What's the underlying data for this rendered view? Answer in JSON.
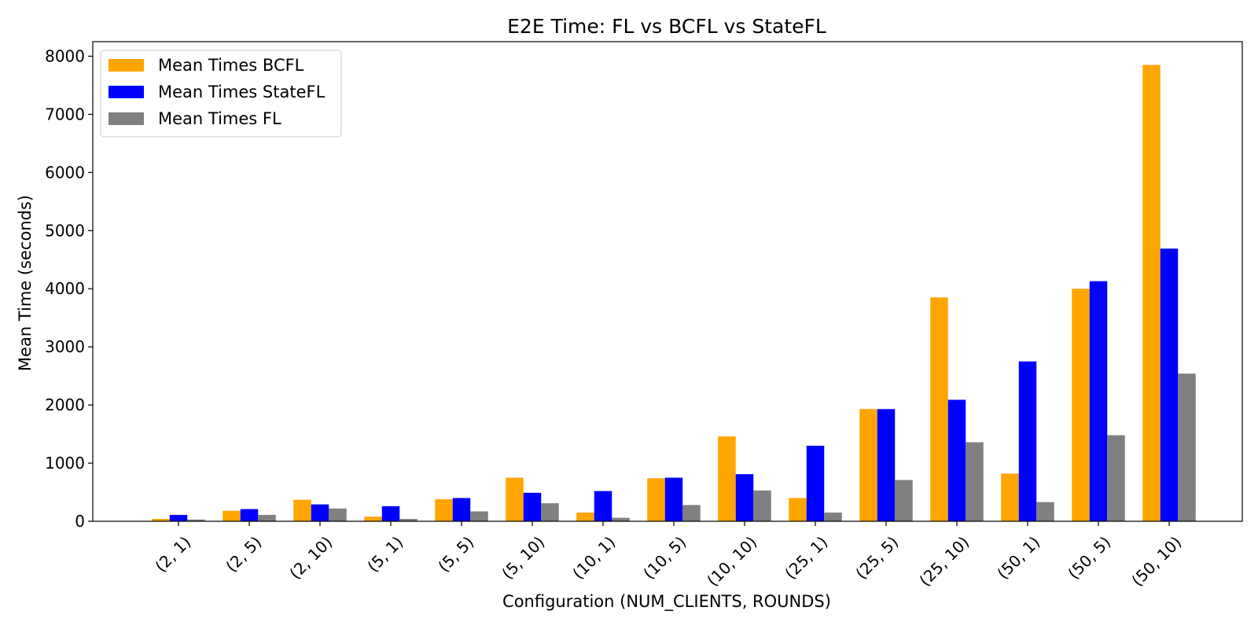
{
  "chart_data": {
    "type": "bar",
    "title": "E2E Time: FL vs BCFL vs StateFL",
    "xlabel": "Configuration (NUM_CLIENTS, ROUNDS)",
    "ylabel": "Mean Time (seconds)",
    "ylim": [
      0,
      8250
    ],
    "yticks": [
      0,
      1000,
      2000,
      3000,
      4000,
      5000,
      6000,
      7000,
      8000
    ],
    "yticklabels": [
      "0",
      "1000",
      "2000",
      "3000",
      "4000",
      "5000",
      "6000",
      "7000",
      "8000"
    ],
    "grid": false,
    "legend_position": "top-left",
    "categories": [
      "(2, 1)",
      "(2, 5)",
      "(2, 10)",
      "(5, 1)",
      "(5, 5)",
      "(5, 10)",
      "(10, 1)",
      "(10, 5)",
      "(10, 10)",
      "(25, 1)",
      "(25, 5)",
      "(25, 10)",
      "(50, 1)",
      "(50, 5)",
      "(50, 10)"
    ],
    "series": [
      {
        "name": "Mean Times BCFL",
        "color": "#ffa500",
        "values": [
          40,
          180,
          370,
          80,
          380,
          750,
          150,
          740,
          1460,
          400,
          1930,
          3850,
          820,
          4000,
          7850
        ]
      },
      {
        "name": "Mean Times StateFL",
        "color": "#0000ff",
        "values": [
          110,
          210,
          290,
          260,
          400,
          490,
          520,
          750,
          810,
          1300,
          1930,
          2090,
          2750,
          4130,
          4690
        ]
      },
      {
        "name": "Mean Times FL",
        "color": "#808080",
        "values": [
          30,
          110,
          220,
          40,
          170,
          310,
          60,
          280,
          530,
          150,
          710,
          1360,
          330,
          1480,
          2540
        ]
      }
    ]
  }
}
